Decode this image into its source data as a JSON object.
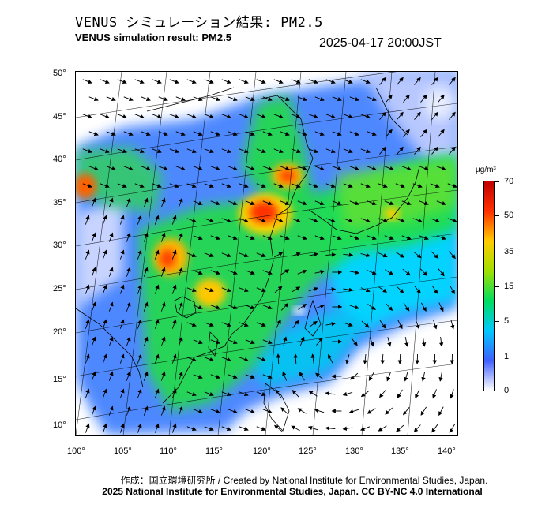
{
  "header": {
    "title_ja": "VENUS シミュレーション結果: PM2.5",
    "title_en": "VENUS simulation result: PM2.5",
    "timestamp": "2025-04-17 20:00JST"
  },
  "map": {
    "lat_labels": [
      "50°",
      "45°",
      "40°",
      "35°",
      "30°",
      "25°",
      "20°",
      "15°",
      "10°"
    ],
    "lon_labels": [
      "100°",
      "105°",
      "110°",
      "115°",
      "120°",
      "125°",
      "130°",
      "135°",
      "140°"
    ],
    "background": "#ffffff",
    "coastline_color": "#000000",
    "wind_arrows": "black"
  },
  "colorbar": {
    "unit": "µg/m³",
    "ticks": [
      "70",
      "50",
      "35",
      "15",
      "5",
      "1",
      "0"
    ],
    "colors": [
      "#ffffff",
      "#4060ff",
      "#00c8ff",
      "#00dd60",
      "#a0e000",
      "#ffcc00",
      "#ff3000",
      "#c00000"
    ]
  },
  "footer": {
    "credit": "作成：国立環境研究所 / Created by National Institute for Environmental Studies, Japan.",
    "copyright": "2025 National Institute for Environmental Studies, Japan. CC BY-NC 4.0 International"
  }
}
